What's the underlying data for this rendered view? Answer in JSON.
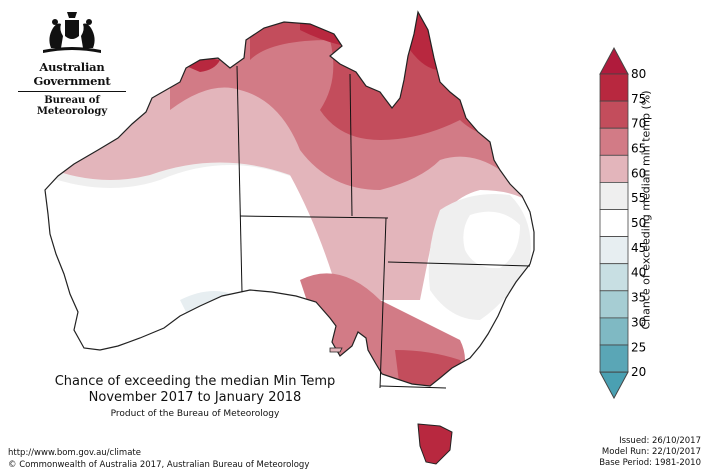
{
  "header": {
    "government": "Australian Government",
    "bureau": "Bureau of Meteorology"
  },
  "icons": [
    "coat-of-arms-icon"
  ],
  "title": {
    "line1": "Chance of exceeding the median Min Temp",
    "line2": "November 2017 to January 2018",
    "product": "Product of the Bureau of Meteorology"
  },
  "legend": {
    "title": "Chance of exceeding median min temp (%)",
    "ticks": [
      "80",
      "75",
      "70",
      "65",
      "60",
      "55",
      "50",
      "45",
      "40",
      "35",
      "30",
      "25",
      "20"
    ],
    "colors": [
      "#b8283f",
      "#c34d5c",
      "#d27b86",
      "#e3b5bb",
      "#efefef",
      "#ffffff",
      "#e7eef1",
      "#c8dfe3",
      "#a6cdd3",
      "#7fb9c3",
      "#5aa6b6"
    ],
    "top_arrow_color": "#b01b3c",
    "bottom_arrow_color": "#4aa0b2"
  },
  "footer": {
    "url": "http://www.bom.gov.au/climate",
    "copyright": "© Commonwealth of Australia 2017, Australian Bureau of Meteorology",
    "issued": "Issued: 26/10/2017",
    "model_run": "Model Run: 22/10/2017",
    "base_period": "Base Period: 1981-2010"
  }
}
